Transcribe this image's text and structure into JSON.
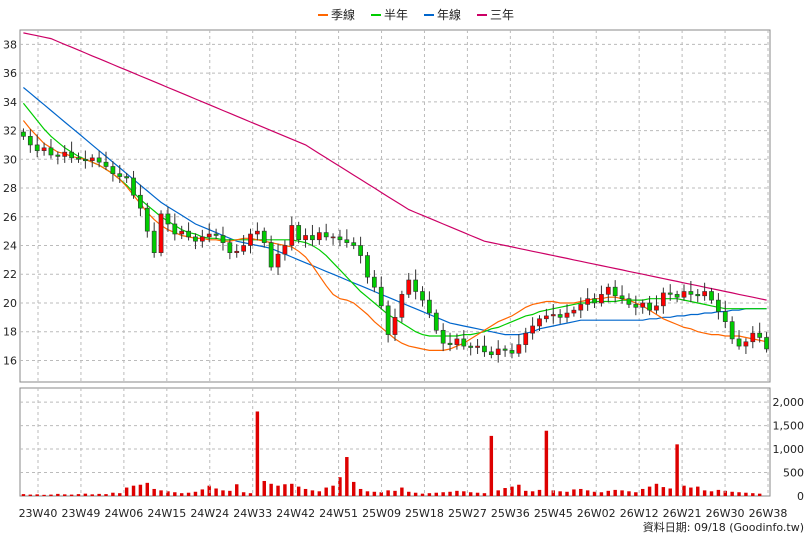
{
  "legend": [
    {
      "label": "季線",
      "color": "#ff6600"
    },
    {
      "label": "半年",
      "color": "#00cc00"
    },
    {
      "label": "年線",
      "color": "#0066cc"
    },
    {
      "label": "三年",
      "color": "#cc0066"
    }
  ],
  "footer": "資料日期: 09/18  (Goodinfo.tw)",
  "chart_data": {
    "type": "candlestick",
    "x_ticks": [
      "23W40",
      "23W49",
      "24W06",
      "24W15",
      "24W24",
      "24W33",
      "24W42",
      "24W51",
      "25W09",
      "25W18",
      "25W27",
      "25W36",
      "25W45",
      "26W02",
      "26W12",
      "26W21",
      "26W30",
      "26W38"
    ],
    "price_axis": {
      "min": 14.5,
      "max": 39,
      "ticks": [
        16,
        18,
        20,
        22,
        24,
        26,
        28,
        30,
        32,
        34,
        36,
        38
      ]
    },
    "volume_axis": {
      "min": 0,
      "max": 2300,
      "ticks": [
        0,
        500,
        "1,000",
        "1,500",
        "2,000"
      ]
    },
    "closes": [
      31.6,
      31.0,
      30.6,
      30.8,
      30.3,
      30.2,
      30.5,
      30.1,
      30.0,
      29.9,
      30.1,
      29.8,
      29.5,
      29.0,
      28.8,
      28.7,
      27.5,
      26.6,
      25.0,
      23.5,
      26.2,
      25.5,
      24.8,
      25.0,
      24.6,
      24.3,
      24.6,
      24.8,
      24.7,
      24.2,
      23.5,
      23.6,
      24.0,
      24.8,
      25.0,
      24.2,
      22.5,
      23.4,
      24.0,
      25.4,
      24.4,
      24.7,
      24.4,
      24.9,
      24.6,
      24.6,
      24.4,
      24.2,
      24.0,
      23.3,
      21.8,
      21.1,
      19.8,
      17.8,
      19.0,
      20.6,
      21.6,
      20.8,
      20.2,
      19.3,
      18.1,
      17.2,
      17.1,
      17.5,
      17.0,
      16.9,
      17.0,
      16.6,
      16.4,
      16.8,
      16.7,
      16.5,
      17.1,
      17.9,
      18.4,
      18.9,
      19.1,
      19.2,
      19.0,
      19.3,
      19.5,
      19.9,
      20.3,
      20.0,
      20.6,
      21.1,
      20.5,
      20.3,
      19.9,
      19.7,
      20.0,
      19.5,
      19.8,
      20.7,
      20.6,
      20.4,
      20.8,
      20.6,
      20.5,
      20.8,
      20.2,
      19.4,
      18.7,
      17.5,
      17.0,
      17.3,
      17.9,
      17.6,
      16.8
    ],
    "volumes": [
      40,
      30,
      35,
      25,
      30,
      45,
      35,
      30,
      40,
      50,
      35,
      45,
      40,
      70,
      60,
      180,
      220,
      240,
      280,
      150,
      120,
      100,
      80,
      60,
      70,
      90,
      140,
      220,
      160,
      120,
      110,
      250,
      80,
      60,
      1800,
      320,
      260,
      220,
      250,
      260,
      200,
      150,
      120,
      100,
      180,
      220,
      400,
      830,
      300,
      150,
      100,
      90,
      80,
      120,
      110,
      180,
      90,
      70,
      50,
      60,
      70,
      80,
      90,
      110,
      100,
      80,
      70,
      60,
      1280,
      120,
      170,
      200,
      240,
      110,
      100,
      130,
      1390,
      120,
      100,
      90,
      140,
      150,
      120,
      90,
      80,
      110,
      130,
      120,
      100,
      80,
      150,
      200,
      260,
      190,
      160,
      1100,
      220,
      180,
      200,
      120,
      100,
      130,
      110,
      90,
      80,
      70,
      60,
      50
    ],
    "ma_quarter": [
      32.7,
      32.1,
      31.6,
      31.1,
      30.8,
      30.5,
      30.4,
      30.2,
      30.1,
      30.0,
      29.8,
      29.6,
      29.3,
      29.0,
      28.6,
      28.1,
      27.5,
      26.9,
      26.3,
      25.8,
      25.4,
      25.1,
      24.9,
      24.7,
      24.6,
      24.5,
      24.5,
      24.4,
      24.4,
      24.3,
      24.3,
      24.4,
      24.5,
      24.5,
      24.4,
      24.3,
      24.2,
      24.1,
      24.0,
      23.9,
      23.6,
      23.2,
      22.6,
      21.9,
      21.2,
      20.6,
      20.3,
      20.2,
      20.0,
      19.6,
      19.2,
      18.7,
      18.3,
      17.9,
      17.5,
      17.2,
      17.0,
      16.9,
      16.8,
      16.7,
      16.7,
      16.7,
      16.8,
      17.0,
      17.2,
      17.5,
      17.8,
      18.1,
      18.4,
      18.7,
      18.9,
      19.1,
      19.4,
      19.7,
      19.9,
      20.0,
      20.1,
      20.1,
      20.0,
      20.0,
      20.0,
      20.1,
      20.2,
      20.3,
      20.3,
      20.4,
      20.4,
      20.3,
      20.2,
      20.0,
      19.8,
      19.5,
      19.2,
      18.9,
      18.7,
      18.5,
      18.3,
      18.2,
      18.0,
      17.9,
      17.8,
      17.8,
      17.7,
      17.7,
      17.7,
      17.6,
      17.5,
      17.4,
      17.3
    ],
    "ma_half": [
      33.9,
      33.3,
      32.7,
      32.1,
      31.6,
      31.2,
      30.8,
      30.5,
      30.2,
      30.0,
      29.8,
      29.6,
      29.3,
      29.0,
      28.6,
      28.2,
      27.7,
      27.2,
      26.8,
      26.4,
      26.0,
      25.7,
      25.4,
      25.1,
      24.9,
      24.8,
      24.6,
      24.5,
      24.5,
      24.4,
      24.4,
      24.4,
      24.4,
      24.4,
      24.4,
      24.4,
      24.4,
      24.4,
      24.4,
      24.4,
      24.3,
      24.2,
      24.0,
      23.7,
      23.3,
      22.8,
      22.3,
      21.8,
      21.3,
      20.8,
      20.4,
      20.0,
      19.6,
      19.2,
      18.9,
      18.6,
      18.3,
      18.0,
      17.8,
      17.7,
      17.7,
      17.7,
      17.7,
      17.7,
      17.8,
      17.8,
      17.9,
      18.0,
      18.2,
      18.3,
      18.5,
      18.7,
      18.9,
      19.1,
      19.2,
      19.4,
      19.5,
      19.6,
      19.7,
      19.8,
      19.9,
      20.0,
      20.0,
      20.1,
      20.1,
      20.1,
      20.1,
      20.2,
      20.2,
      20.2,
      20.2,
      20.3,
      20.3,
      20.3,
      20.3,
      20.3,
      20.2,
      20.1,
      20.0,
      19.9,
      19.8,
      19.7,
      19.6,
      19.6,
      19.6,
      19.6,
      19.6,
      19.6,
      19.6
    ],
    "ma_year": [
      35.0,
      34.6,
      34.2,
      33.8,
      33.4,
      33.0,
      32.6,
      32.2,
      31.8,
      31.4,
      31.0,
      30.6,
      30.2,
      29.8,
      29.4,
      29.0,
      28.6,
      28.2,
      27.8,
      27.4,
      27.0,
      26.7,
      26.4,
      26.1,
      25.8,
      25.5,
      25.3,
      25.1,
      24.9,
      24.7,
      24.5,
      24.3,
      24.2,
      24.1,
      24.0,
      23.9,
      23.8,
      23.6,
      23.4,
      23.2,
      23.0,
      22.8,
      22.6,
      22.4,
      22.2,
      22.0,
      21.8,
      21.6,
      21.4,
      21.2,
      21.0,
      20.8,
      20.6,
      20.4,
      20.2,
      20.0,
      19.8,
      19.6,
      19.4,
      19.2,
      19.0,
      18.8,
      18.6,
      18.5,
      18.4,
      18.3,
      18.2,
      18.1,
      18.0,
      17.9,
      17.8,
      17.8,
      17.8,
      17.9,
      18.0,
      18.2,
      18.3,
      18.4,
      18.5,
      18.6,
      18.7,
      18.8,
      18.8,
      18.8,
      18.8,
      18.8,
      18.8,
      18.8,
      18.8,
      18.8,
      18.8,
      18.9,
      18.9,
      19.0,
      19.0,
      19.1,
      19.1,
      19.2,
      19.2,
      19.3,
      19.3,
      19.4,
      19.4,
      19.5,
      19.5,
      19.6,
      19.6,
      19.6,
      19.6
    ],
    "ma_3year": [
      38.8,
      38.7,
      38.6,
      38.5,
      38.4,
      38.2,
      38.0,
      37.8,
      37.6,
      37.4,
      37.2,
      37.0,
      36.8,
      36.6,
      36.4,
      36.2,
      36.0,
      35.8,
      35.6,
      35.4,
      35.2,
      35.0,
      34.8,
      34.6,
      34.4,
      34.2,
      34.0,
      33.8,
      33.6,
      33.4,
      33.2,
      33.0,
      32.8,
      32.6,
      32.4,
      32.2,
      32.0,
      31.8,
      31.6,
      31.4,
      31.2,
      31.0,
      30.7,
      30.4,
      30.1,
      29.8,
      29.5,
      29.2,
      28.9,
      28.6,
      28.3,
      28.0,
      27.7,
      27.4,
      27.1,
      26.8,
      26.5,
      26.3,
      26.1,
      25.9,
      25.7,
      25.5,
      25.3,
      25.1,
      24.9,
      24.7,
      24.5,
      24.3,
      24.2,
      24.1,
      24.0,
      23.9,
      23.8,
      23.7,
      23.6,
      23.5,
      23.4,
      23.3,
      23.2,
      23.1,
      23.0,
      22.9,
      22.8,
      22.7,
      22.6,
      22.5,
      22.4,
      22.3,
      22.2,
      22.1,
      22.0,
      21.9,
      21.8,
      21.7,
      21.6,
      21.5,
      21.4,
      21.3,
      21.2,
      21.1,
      21.0,
      20.9,
      20.8,
      20.7,
      20.6,
      20.5,
      20.4,
      20.3,
      20.2
    ]
  }
}
